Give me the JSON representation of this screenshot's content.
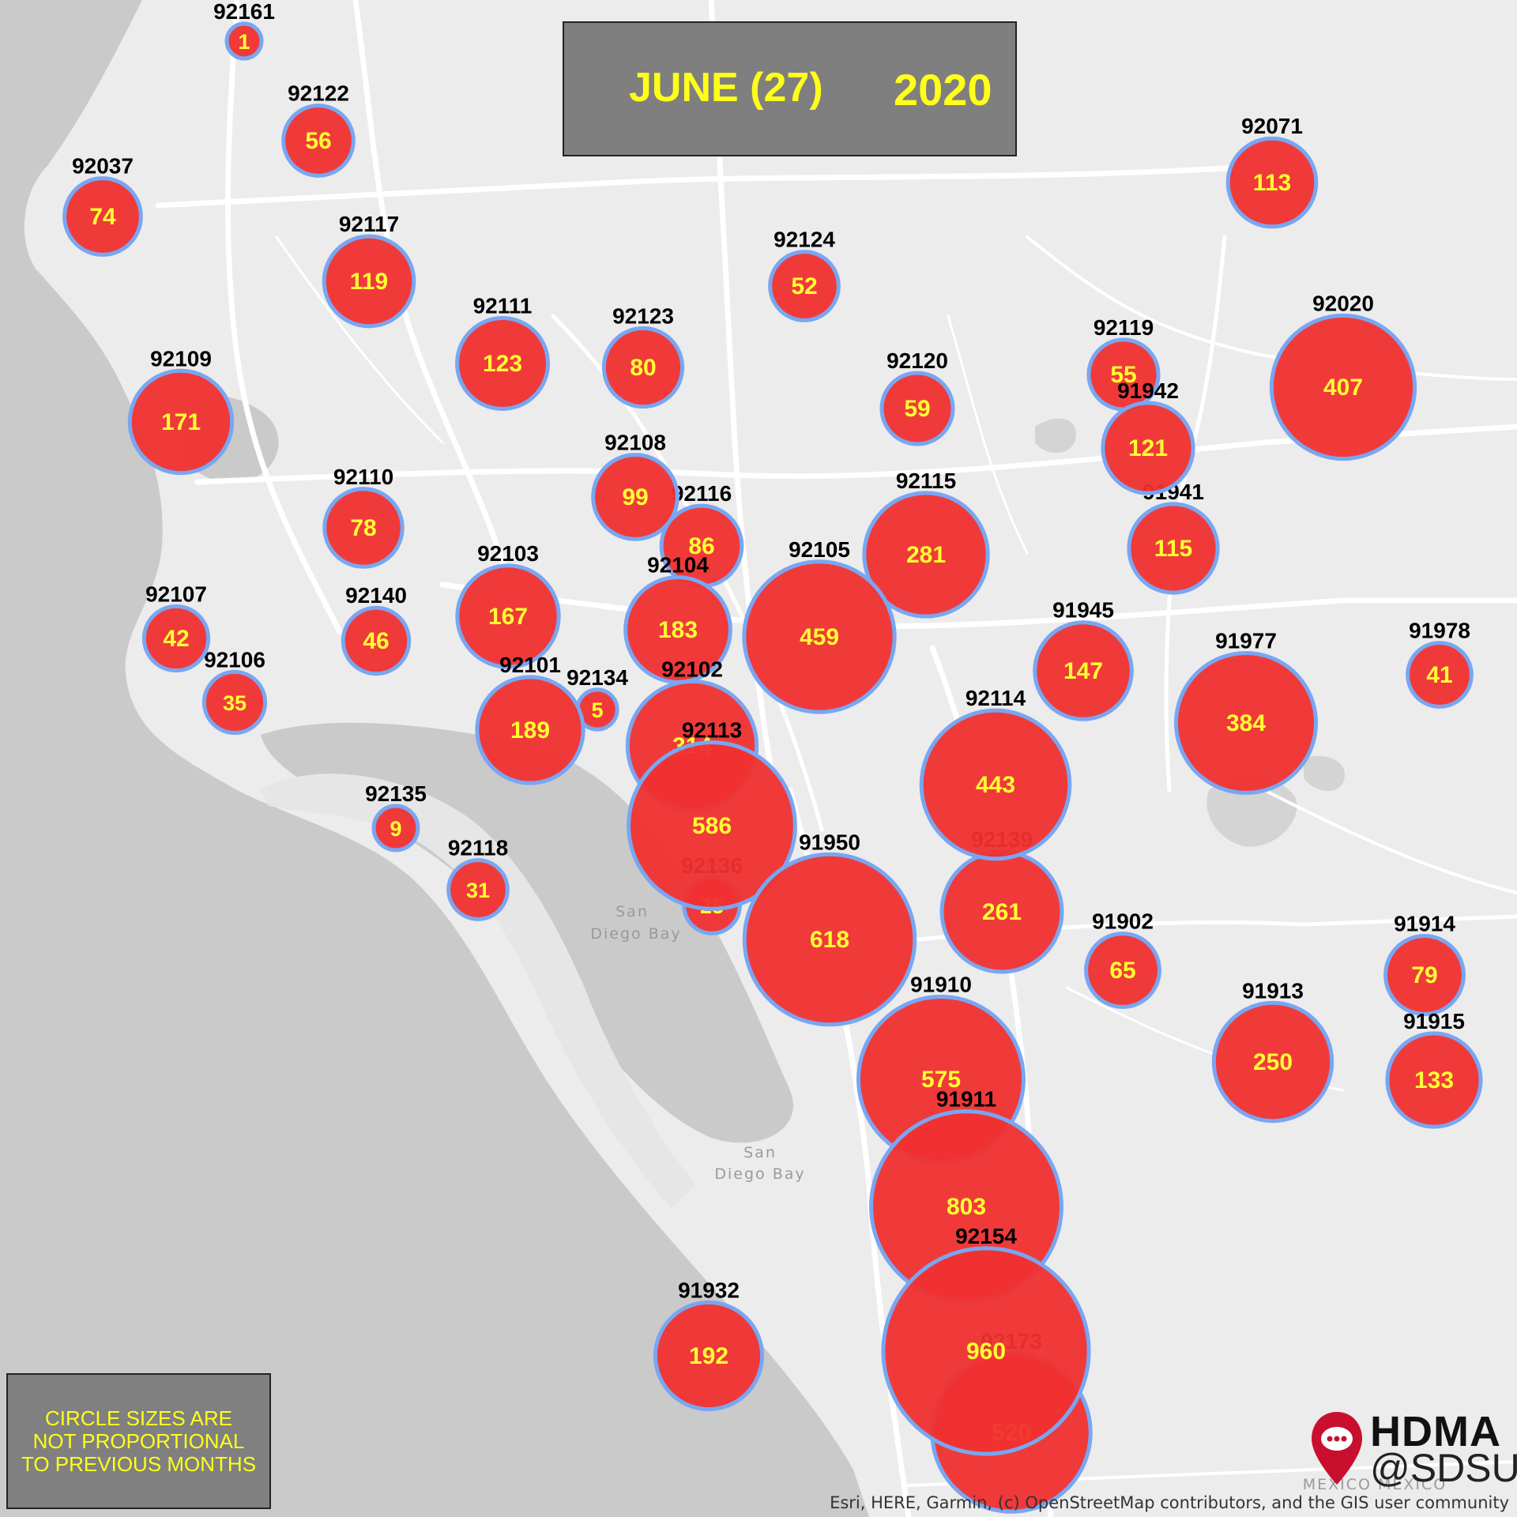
{
  "title": {
    "month": "JUNE (27)",
    "year": "2020"
  },
  "note": {
    "lines": [
      "CIRCLE SIZES ARE",
      "NOT PROPORTIONAL",
      "TO PREVIOUS MONTHS"
    ]
  },
  "attribution": "Esri, HERE, Garmin, (c) OpenStreetMap contributors, and the GIS user community",
  "logo": {
    "name": "HDMA",
    "sub": "@SDSU",
    "icon": "map-pin-chat-icon"
  },
  "place_labels": [
    "San",
    "Diego Bay",
    "San",
    "Diego Bay",
    "MEXICO MEXICO"
  ],
  "colors": {
    "bubble_fill": "#f03030",
    "bubble_stroke": "#79a6f2",
    "count_text": "#ffff33",
    "title_text": "#ffff1a",
    "water": "#cacaca",
    "land": "#ececec"
  },
  "zip_counts": [
    {
      "zip": "92161",
      "count": 1
    },
    {
      "zip": "92122",
      "count": 56
    },
    {
      "zip": "92037",
      "count": 74
    },
    {
      "zip": "92117",
      "count": 119
    },
    {
      "zip": "92124",
      "count": 52
    },
    {
      "zip": "92111",
      "count": 123
    },
    {
      "zip": "92123",
      "count": 80
    },
    {
      "zip": "92109",
      "count": 171
    },
    {
      "zip": "92119",
      "count": 55
    },
    {
      "zip": "92020",
      "count": 407
    },
    {
      "zip": "92120",
      "count": 59
    },
    {
      "zip": "91942",
      "count": 121
    },
    {
      "zip": "92071",
      "count": 113
    },
    {
      "zip": "92108",
      "count": 99
    },
    {
      "zip": "92110",
      "count": 78
    },
    {
      "zip": "92116",
      "count": 86
    },
    {
      "zip": "92115",
      "count": 281
    },
    {
      "zip": "91941",
      "count": 115
    },
    {
      "zip": "92103",
      "count": 167
    },
    {
      "zip": "92104",
      "count": 183
    },
    {
      "zip": "92105",
      "count": 459
    },
    {
      "zip": "92107",
      "count": 42
    },
    {
      "zip": "92140",
      "count": 46
    },
    {
      "zip": "91945",
      "count": 147
    },
    {
      "zip": "91978",
      "count": 41
    },
    {
      "zip": "92106",
      "count": 35
    },
    {
      "zip": "92101",
      "count": 189
    },
    {
      "zip": "92134",
      "count": 5
    },
    {
      "zip": "92102",
      "count": 314
    },
    {
      "zip": "91977",
      "count": 384
    },
    {
      "zip": "92114",
      "count": 443
    },
    {
      "zip": "92113",
      "count": 586
    },
    {
      "zip": "92135",
      "count": 9
    },
    {
      "zip": "92118",
      "count": 31
    },
    {
      "zip": "92136",
      "count": 25
    },
    {
      "zip": "91950",
      "count": 618
    },
    {
      "zip": "92139",
      "count": 261
    },
    {
      "zip": "91902",
      "count": 65
    },
    {
      "zip": "91914",
      "count": 79
    },
    {
      "zip": "91910",
      "count": 575
    },
    {
      "zip": "91913",
      "count": 250
    },
    {
      "zip": "91915",
      "count": 133
    },
    {
      "zip": "91911",
      "count": 803
    },
    {
      "zip": "92154",
      "count": 960
    },
    {
      "zip": "91932",
      "count": 192
    },
    {
      "zip": "92173",
      "count": 520
    }
  ]
}
